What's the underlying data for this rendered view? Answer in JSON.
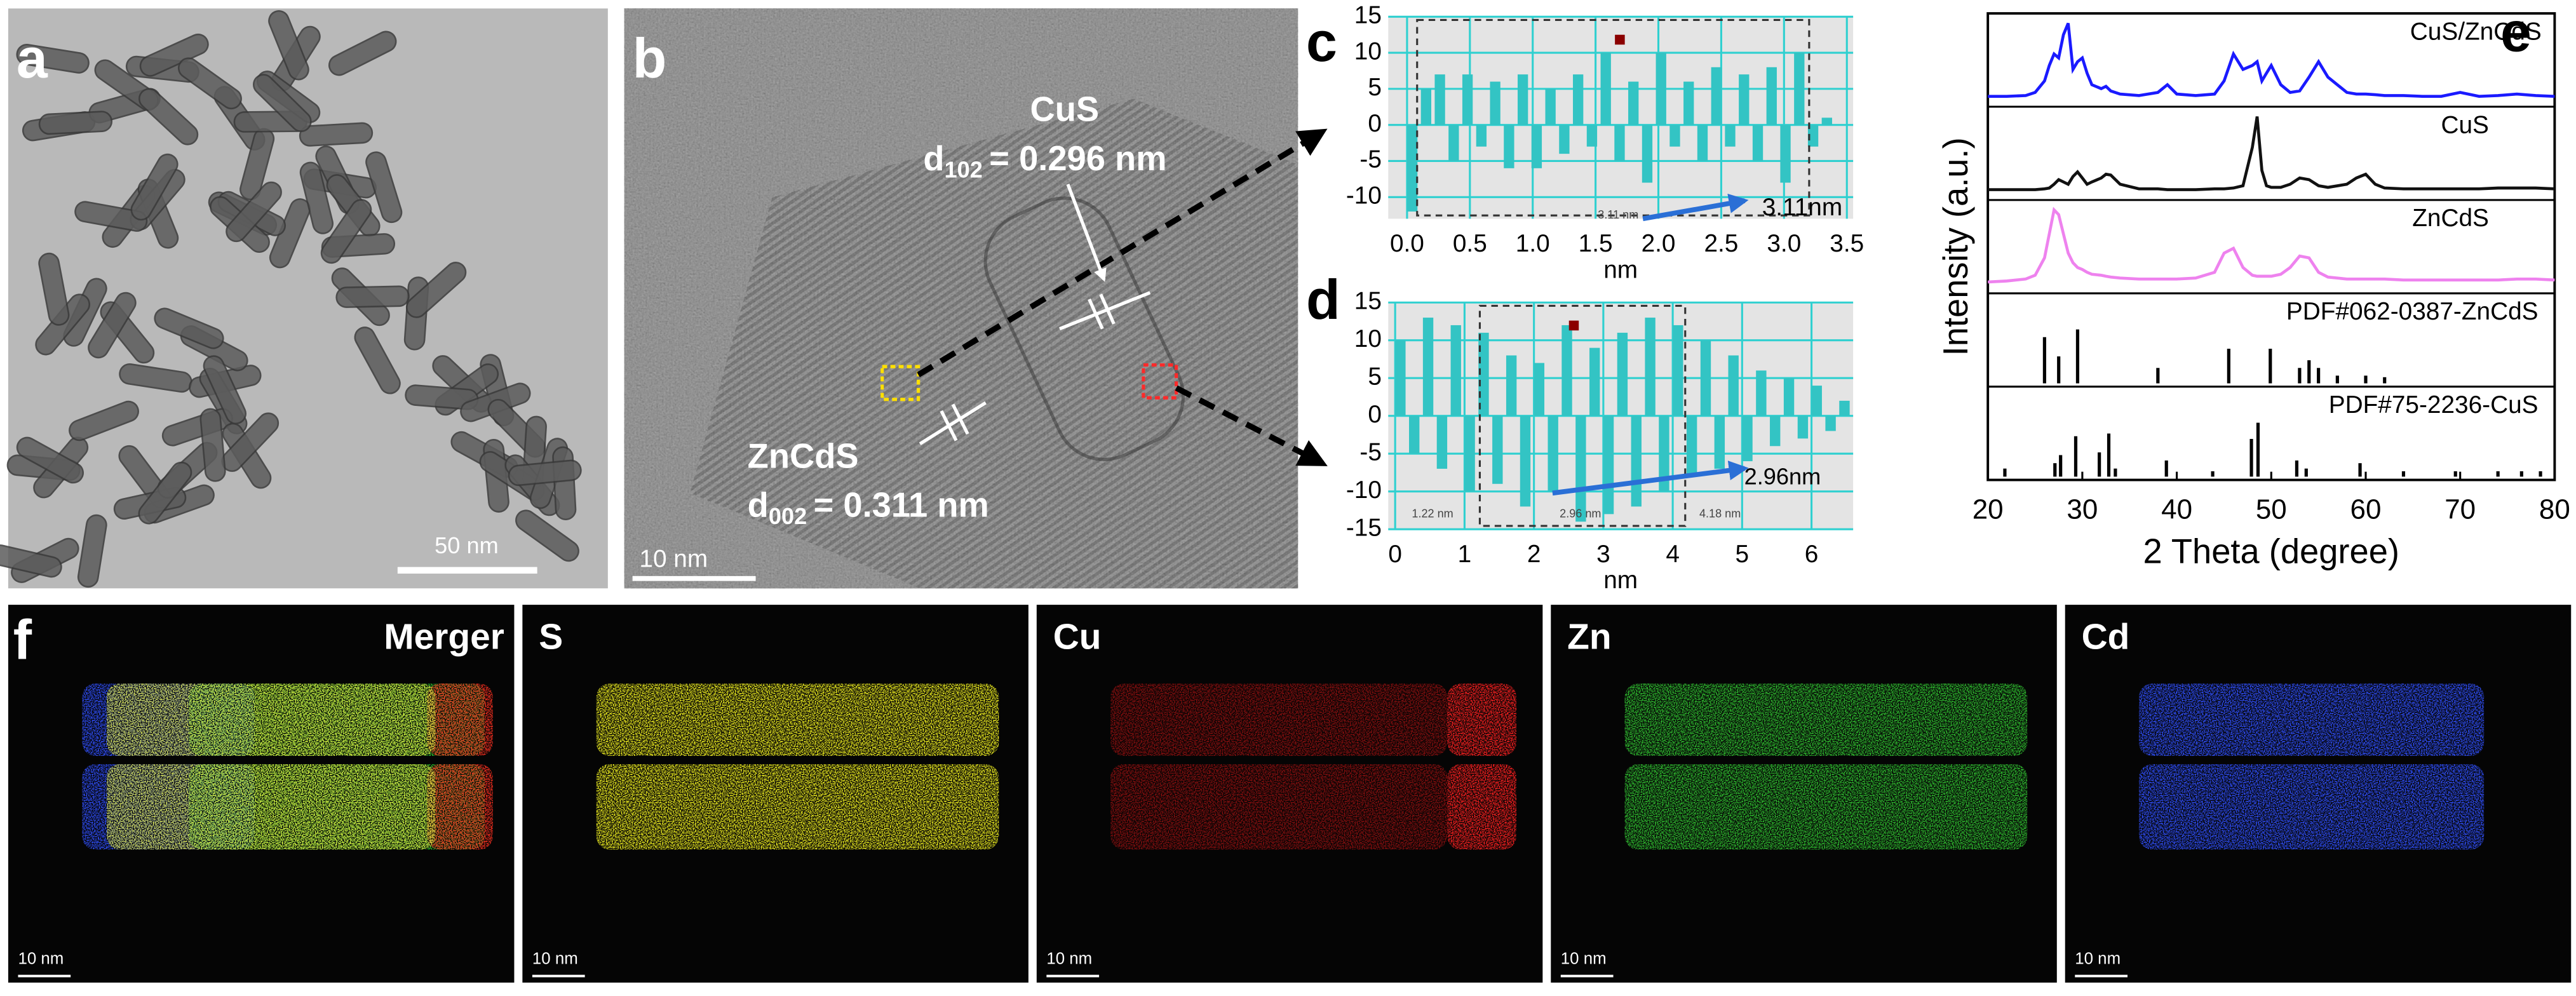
{
  "panels": {
    "a": {
      "label": "a",
      "scale_bar": "50 nm"
    },
    "b": {
      "label": "b",
      "cus": {
        "phase": "CuS",
        "d": "d",
        "index": "102",
        "spacing": "= 0.296 nm"
      },
      "zncds": {
        "phase": "ZnCdS",
        "d": "d",
        "index": "002",
        "spacing": "= 0.311 nm"
      },
      "scale_bar": "10 nm"
    },
    "f": {
      "label": "f",
      "maps": [
        {
          "label": "Merger",
          "scale_bar": "10 nm"
        },
        {
          "label": "S",
          "scale_bar": "10 nm"
        },
        {
          "label": "Cu",
          "scale_bar": "10 nm"
        },
        {
          "label": "Zn",
          "scale_bar": "10 nm"
        },
        {
          "label": "Cd",
          "scale_bar": "10 nm"
        }
      ]
    }
  },
  "chart_data": [
    {
      "type": "bar",
      "panel_label": "c",
      "xlabel": "nm",
      "color": "#33c4c4",
      "grid": true,
      "x": [
        0,
        0.11,
        0.22,
        0.33,
        0.44,
        0.55,
        0.66,
        0.77,
        0.88,
        0.99,
        1.1,
        1.21,
        1.32,
        1.43,
        1.54,
        1.65,
        1.76,
        1.87,
        1.98,
        2.09,
        2.2,
        2.31,
        2.42,
        2.53,
        2.64,
        2.75,
        2.86,
        2.97,
        3.08,
        3.19,
        3.3
      ],
      "values": [
        -12,
        5,
        7,
        -5,
        7,
        -3,
        6,
        -6,
        7,
        -6,
        5,
        -4,
        7,
        -3,
        10,
        -5,
        6,
        -8,
        10,
        -3,
        6,
        -5,
        8,
        -3,
        7,
        -5,
        8,
        -8,
        10,
        -3,
        1
      ],
      "xlim": [
        -0.15,
        3.55
      ],
      "ylim": [
        -13,
        15
      ],
      "xticks": [
        {
          "value": 0,
          "label": "0.0"
        },
        0.5,
        {
          "value": 1,
          "label": "1.0"
        },
        1.5,
        {
          "value": 2,
          "label": "2.0"
        },
        2.5,
        {
          "value": 3,
          "label": "3.0"
        },
        3.5
      ],
      "yticks": [
        -10,
        -5,
        0,
        5,
        10,
        15
      ],
      "annotations": [
        "3.11nm",
        "3.11 nm"
      ]
    },
    {
      "type": "bar",
      "panel_label": "d",
      "xlabel": "nm",
      "color": "#33c4c4",
      "grid": true,
      "x": [
        0,
        0.2,
        0.4,
        0.6,
        0.8,
        1,
        1.2,
        1.4,
        1.6,
        1.8,
        2,
        2.2,
        2.4,
        2.6,
        2.8,
        3,
        3.2,
        3.4,
        3.6,
        3.8,
        4,
        4.2,
        4.4,
        4.6,
        4.8,
        5,
        5.2,
        5.4,
        5.6,
        5.8,
        6,
        6.2,
        6.4
      ],
      "values": [
        10,
        -5,
        13,
        -7,
        12,
        -10,
        11,
        -9,
        8,
        -12,
        7,
        -10,
        12,
        -14,
        9,
        -13,
        11,
        -12,
        13,
        -10,
        12,
        -8,
        10,
        -7,
        8,
        -6,
        6,
        -4,
        5,
        -3,
        4,
        -2,
        2
      ],
      "xlim": [
        -0.1,
        6.6
      ],
      "ylim": [
        -15,
        15
      ],
      "xticks": [
        0,
        1,
        2,
        3,
        4,
        5,
        6
      ],
      "yticks": [
        -15,
        -10,
        -5,
        0,
        5,
        10,
        15
      ],
      "annotations": [
        "2.96nm",
        "1.22 nm",
        "2.96 nm",
        "4.18 nm"
      ]
    },
    {
      "type": "line",
      "panel_label": "e",
      "xlabel": "2 Theta (degree)",
      "ylabel": "Intensity (a.u.)",
      "xlim": [
        20,
        80
      ],
      "xticks": [
        20,
        30,
        40,
        50,
        60,
        70,
        80
      ],
      "x": [
        20,
        22,
        24,
        25,
        26,
        26.5,
        27,
        27.5,
        28,
        28.5,
        29,
        29.5,
        30,
        30.5,
        31,
        32,
        32.5,
        33,
        34,
        36,
        38,
        39,
        40,
        42,
        44,
        45,
        46,
        47,
        48,
        48.5,
        49,
        49.5,
        50,
        51,
        52,
        53,
        54,
        55,
        56,
        58,
        59,
        60,
        61,
        62,
        64,
        66,
        68,
        70,
        72,
        74,
        76,
        78,
        80
      ],
      "series": [
        {
          "name": "CuS/ZnCdS",
          "color": "#1a1aff",
          "values": [
            5,
            5,
            6,
            10,
            25,
            45,
            60,
            55,
            85,
            100,
            40,
            50,
            55,
            35,
            20,
            15,
            18,
            12,
            8,
            6,
            10,
            20,
            8,
            6,
            8,
            25,
            60,
            40,
            45,
            50,
            25,
            35,
            45,
            20,
            10,
            12,
            30,
            50,
            30,
            10,
            8,
            8,
            7,
            6,
            6,
            5,
            5,
            10,
            5,
            6,
            8,
            6,
            5
          ]
        },
        {
          "name": "CuS",
          "color": "#111111",
          "values": [
            5,
            5,
            5,
            5,
            6,
            7,
            12,
            18,
            15,
            12,
            22,
            28,
            20,
            12,
            15,
            20,
            25,
            24,
            12,
            6,
            6,
            5,
            5,
            5,
            6,
            6,
            7,
            10,
            60,
            100,
            30,
            10,
            8,
            8,
            12,
            20,
            18,
            10,
            8,
            12,
            20,
            25,
            12,
            7,
            6,
            6,
            6,
            6,
            6,
            7,
            7,
            7,
            6
          ]
        },
        {
          "name": "ZnCdS",
          "color": "#ee82ee",
          "values": [
            5,
            6,
            8,
            12,
            30,
            55,
            80,
            75,
            55,
            35,
            25,
            20,
            18,
            15,
            13,
            12,
            11,
            10,
            9,
            8,
            8,
            8,
            8,
            9,
            15,
            35,
            40,
            20,
            12,
            11,
            11,
            11,
            11,
            13,
            20,
            32,
            30,
            15,
            10,
            8,
            8,
            8,
            8,
            8,
            7,
            7,
            7,
            7,
            7,
            7,
            8,
            8,
            7
          ]
        }
      ],
      "sticks": [
        {
          "name": "PDF#062-0387-ZnCdS",
          "color": "#000000",
          "x": [
            26,
            27.5,
            29.5,
            38,
            45.5,
            49.9,
            53,
            54,
            55,
            57,
            60,
            62
          ],
          "values": [
            60,
            35,
            70,
            20,
            45,
            45,
            20,
            30,
            20,
            10,
            10,
            8
          ]
        },
        {
          "name": "PDF#75-2236-CuS",
          "color": "#000000",
          "x": [
            21.8,
            27.1,
            27.7,
            29.3,
            31.8,
            32.8,
            33.5,
            38.9,
            43.8,
            47.9,
            48.6,
            52.7,
            53.7,
            59.4,
            64,
            69.5,
            74,
            76.5,
            78.5
          ],
          "values": [
            15,
            25,
            40,
            75,
            45,
            80,
            15,
            30,
            10,
            70,
            100,
            30,
            15,
            25,
            10,
            10,
            10,
            10,
            10
          ]
        }
      ]
    }
  ]
}
